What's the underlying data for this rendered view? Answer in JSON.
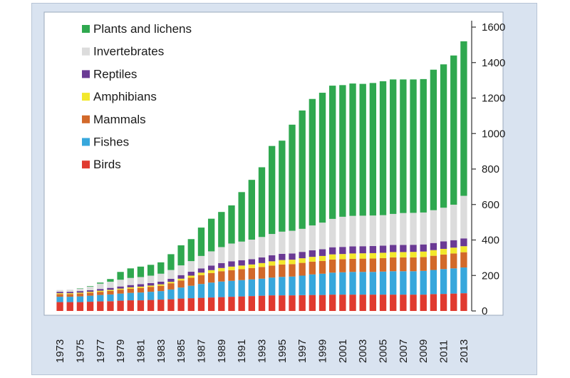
{
  "chart_data": {
    "type": "bar",
    "stacked": true,
    "title": "",
    "xlabel": "",
    "ylabel": "",
    "ylim": [
      0,
      1600
    ],
    "y_ticks": [
      0,
      200,
      400,
      600,
      800,
      1000,
      1200,
      1400,
      1600
    ],
    "y_axis_side": "right",
    "grid": false,
    "legend_position": "top-left",
    "x_tick_labels": [
      "1973",
      "1975",
      "1977",
      "1979",
      "1981",
      "1983",
      "1985",
      "1987",
      "1989",
      "1991",
      "1993",
      "1995",
      "1997",
      "1999",
      "2001",
      "2003",
      "2005",
      "2007",
      "2009",
      "2011",
      "2013"
    ],
    "categories": [
      "1973",
      "1974",
      "1975",
      "1976",
      "1977",
      "1978",
      "1979",
      "1980",
      "1981",
      "1982",
      "1983",
      "1984",
      "1985",
      "1986",
      "1987",
      "1988",
      "1989",
      "1990",
      "1991",
      "1992",
      "1993",
      "1994",
      "1995",
      "1996",
      "1997",
      "1998",
      "1999",
      "2000",
      "2001",
      "2002",
      "2003",
      "2004",
      "2005",
      "2006",
      "2007",
      "2008",
      "2009",
      "2010",
      "2011",
      "2012",
      "2013"
    ],
    "series": [
      {
        "name": "Birds",
        "color": "#e03a2f",
        "values": [
          50,
          50,
          50,
          52,
          54,
          55,
          58,
          60,
          60,
          62,
          64,
          66,
          70,
          72,
          74,
          76,
          78,
          80,
          82,
          84,
          86,
          88,
          88,
          88,
          89,
          90,
          90,
          92,
          92,
          92,
          92,
          92,
          92,
          92,
          92,
          92,
          92,
          95,
          96,
          98,
          100
        ]
      },
      {
        "name": "Fishes",
        "color": "#37a7dc",
        "values": [
          30,
          30,
          32,
          34,
          36,
          38,
          40,
          42,
          44,
          46,
          48,
          55,
          62,
          70,
          78,
          84,
          88,
          90,
          92,
          94,
          96,
          100,
          104,
          106,
          110,
          116,
          120,
          124,
          126,
          128,
          128,
          128,
          130,
          132,
          132,
          132,
          134,
          136,
          140,
          142,
          145
        ]
      },
      {
        "name": "Mammals",
        "color": "#d2692a",
        "values": [
          15,
          15,
          16,
          17,
          18,
          20,
          22,
          24,
          26,
          28,
          30,
          35,
          40,
          45,
          50,
          54,
          58,
          60,
          62,
          64,
          66,
          68,
          70,
          70,
          72,
          72,
          72,
          74,
          74,
          74,
          75,
          76,
          76,
          78,
          78,
          78,
          78,
          80,
          82,
          84,
          86
        ]
      },
      {
        "name": "Amphibians",
        "color": "#f2e82c",
        "values": [
          5,
          5,
          5,
          5,
          6,
          6,
          6,
          7,
          7,
          7,
          8,
          8,
          10,
          12,
          14,
          16,
          18,
          20,
          20,
          20,
          22,
          24,
          25,
          25,
          26,
          27,
          28,
          29,
          29,
          30,
          30,
          30,
          30,
          30,
          30,
          31,
          31,
          32,
          32,
          33,
          34
        ]
      },
      {
        "name": "Reptiles",
        "color": "#6a3a94",
        "values": [
          8,
          8,
          9,
          9,
          10,
          11,
          12,
          13,
          14,
          14,
          15,
          17,
          20,
          22,
          24,
          26,
          28,
          30,
          30,
          30,
          32,
          34,
          35,
          35,
          36,
          37,
          38,
          40,
          40,
          40,
          40,
          40,
          40,
          40,
          40,
          40,
          40,
          40,
          42,
          42,
          44
        ]
      },
      {
        "name": "Invertebrates",
        "color": "#dcdcdc",
        "values": [
          10,
          12,
          14,
          20,
          30,
          35,
          38,
          40,
          40,
          42,
          45,
          50,
          55,
          60,
          70,
          80,
          90,
          100,
          105,
          110,
          115,
          120,
          125,
          128,
          130,
          140,
          150,
          160,
          170,
          172,
          172,
          172,
          172,
          175,
          180,
          180,
          180,
          185,
          190,
          200,
          240
        ]
      },
      {
        "name": "Plants and lichens",
        "color": "#2fa84f",
        "values": [
          0,
          0,
          2,
          3,
          6,
          15,
          44,
          54,
          59,
          61,
          64,
          89,
          113,
          124,
          160,
          184,
          198,
          215,
          279,
          337,
          393,
          496,
          513,
          598,
          667,
          713,
          732,
          751,
          742,
          746,
          743,
          747,
          755,
          758,
          753,
          752,
          752,
          792,
          808,
          841,
          871
        ]
      }
    ]
  }
}
